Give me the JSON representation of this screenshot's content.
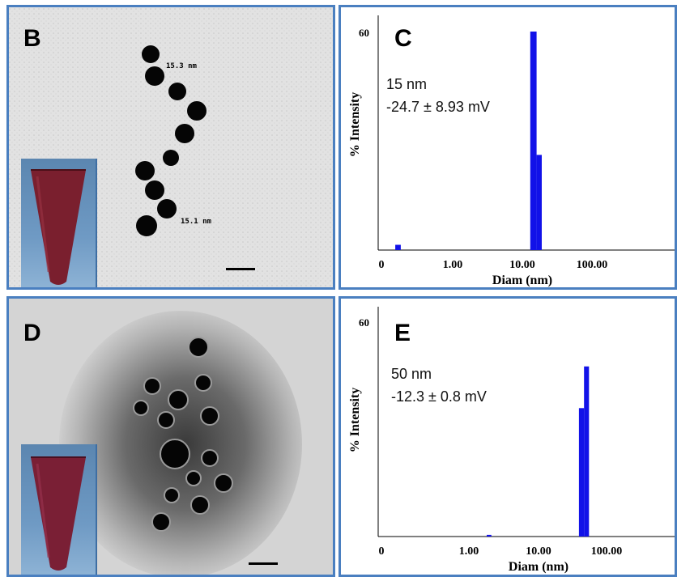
{
  "panels": {
    "b": {
      "letter": "B",
      "label_top": "15.3 nm",
      "label_bottom": "15.1 nm"
    },
    "c": {
      "letter": "C",
      "size_text": "15 nm",
      "zeta_text": "-24.7 ± 8.93 mV"
    },
    "d": {
      "letter": "D"
    },
    "e": {
      "letter": "E",
      "size_text": "50 nm",
      "zeta_text": "-12.3 ± 0.8 mV"
    }
  },
  "colors": {
    "bar": "#1212e8",
    "panel_border": "#4a7fc0"
  },
  "chart_data": [
    {
      "panel": "C",
      "type": "bar",
      "xlabel": "Diam (nm)",
      "ylabel": "% Intensity",
      "x_scale": "log",
      "x_ticks": [
        "0",
        "1.00",
        "10.00",
        "100.00"
      ],
      "y_ticks": [
        "60"
      ],
      "ylim": [
        0,
        62
      ],
      "bars": [
        {
          "x_from": 0.15,
          "x_to": 0.18,
          "value": 1.5
        },
        {
          "x_from": 13,
          "x_to": 16,
          "value": 62
        },
        {
          "x_from": 16,
          "x_to": 19,
          "value": 27
        }
      ]
    },
    {
      "panel": "E",
      "type": "bar",
      "xlabel": "Diam (nm)",
      "ylabel": "% Intensity",
      "x_scale": "log",
      "x_ticks": [
        "0",
        "1.00",
        "10.00",
        "100.00"
      ],
      "y_ticks": [
        "60"
      ],
      "ylim": [
        0,
        62
      ],
      "bars": [
        {
          "x_from": 1.8,
          "x_to": 2.1,
          "value": 0.5
        },
        {
          "x_from": 38,
          "x_to": 45,
          "value": 37
        },
        {
          "x_from": 45,
          "x_to": 53,
          "value": 49
        }
      ]
    }
  ]
}
